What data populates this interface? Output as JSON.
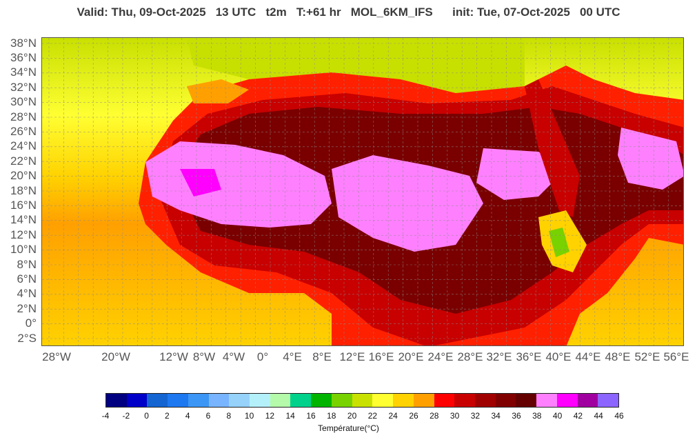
{
  "header": {
    "title": "Valid: Thu, 09-Oct-2025   13 UTC   t2m   T:+61 hr   MOL_6KM_IFS      init: Tue, 07-Oct-2025   00 UTC"
  },
  "map": {
    "region": "North Africa and Arabian Peninsula",
    "variable": "t2m",
    "lat_labels": [
      "38°N",
      "36°N",
      "34°N",
      "32°N",
      "30°N",
      "28°N",
      "26°N",
      "24°N",
      "22°N",
      "20°N",
      "18°N",
      "16°N",
      "14°N",
      "12°N",
      "10°N",
      "8°N",
      "6°N",
      "4°N",
      "2°N",
      "0°",
      "2°S"
    ],
    "lon_labels": [
      "28°W",
      "20°W",
      "12°W",
      "8°W",
      "4°W",
      "0°",
      "4°E",
      "8°E",
      "12°E",
      "16°E",
      "20°E",
      "24°E",
      "28°E",
      "32°E",
      "36°E",
      "40°E",
      "44°E",
      "48°E",
      "52°E",
      "56°E"
    ],
    "colors": {
      "ocean_north": "#c8e000",
      "ocean_mid": "#ffe000",
      "ocean_south": "#ffa500",
      "land_hot": "#c80000",
      "land_very_hot": "#7a0000",
      "land_extreme": "#ff80ff",
      "land_warm": "#ff2000"
    }
  },
  "legend": {
    "title": "Température(°C)",
    "ticks": [
      "-4",
      "-2",
      "0",
      "2",
      "4",
      "6",
      "8",
      "10",
      "12",
      "14",
      "16",
      "18",
      "20",
      "22",
      "24",
      "26",
      "28",
      "30",
      "32",
      "34",
      "36",
      "38",
      "40",
      "42",
      "44",
      "46"
    ],
    "colors": [
      "#000080",
      "#0000c8",
      "#1464d2",
      "#1e78f0",
      "#3c96f5",
      "#78b4ff",
      "#96d2fa",
      "#b4f0fa",
      "#b4faaa",
      "#00d28c",
      "#00b400",
      "#78d200",
      "#c8e100",
      "#ffff32",
      "#ffd200",
      "#ffa000",
      "#ff0000",
      "#c80000",
      "#a00000",
      "#800000",
      "#640000",
      "#ff80ff",
      "#ff00ff",
      "#a000a0",
      "#8c64ff"
    ]
  }
}
